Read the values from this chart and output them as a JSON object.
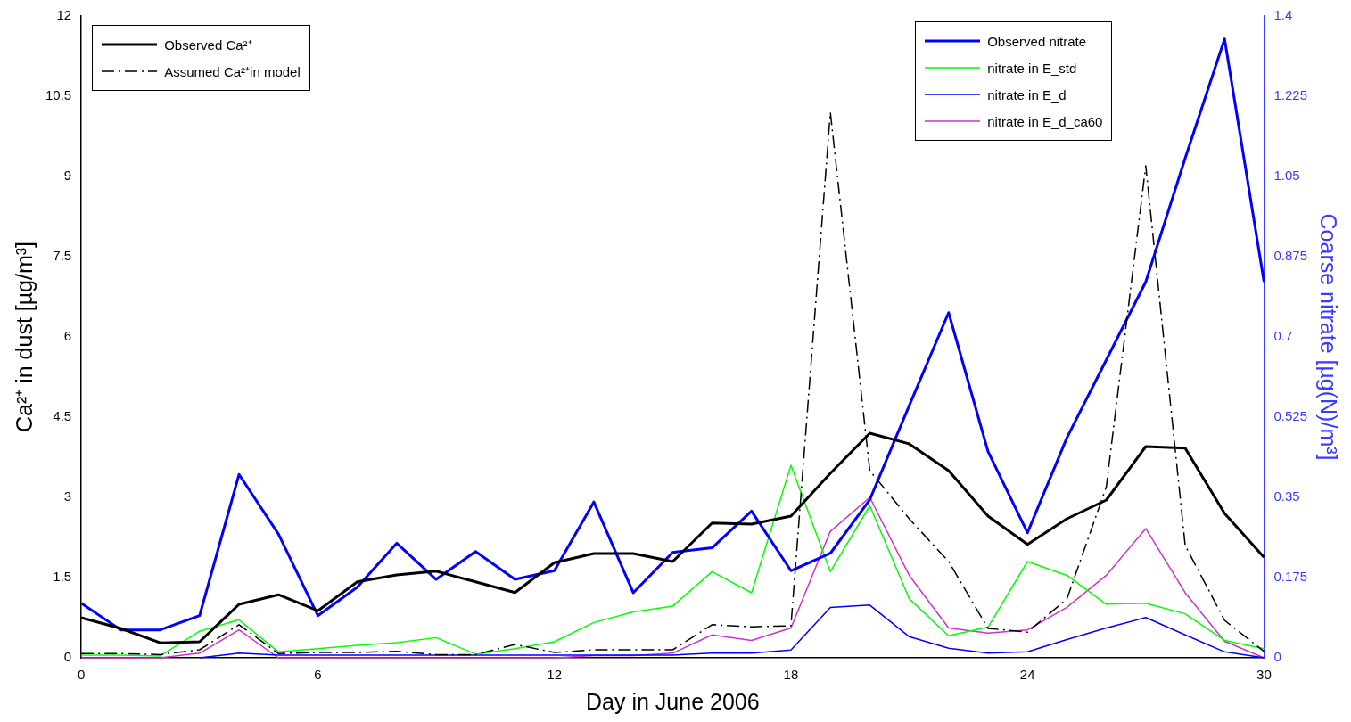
{
  "chart_data": {
    "type": "line",
    "xlabel": "Day in June 2006",
    "ylabel": "Ca²⁺ in dust [µg/m³]",
    "y2label": "Coarse nitrate [µg(N)/m³]",
    "x": [
      0,
      1,
      2,
      3,
      4,
      5,
      6,
      7,
      8,
      9,
      10,
      11,
      12,
      13,
      14,
      15,
      16,
      17,
      18,
      19,
      20,
      21,
      22,
      23,
      24,
      25,
      26,
      27,
      28,
      29,
      30
    ],
    "xlim": [
      0,
      30
    ],
    "xticks": [
      0,
      6,
      12,
      18,
      24,
      30
    ],
    "ylim": [
      0,
      12
    ],
    "yticks": [
      0,
      1.5,
      3,
      4.5,
      6,
      7.5,
      9,
      10.5,
      12
    ],
    "y2lim": [
      0,
      1.4
    ],
    "y2ticks": [
      0,
      0.175,
      0.35,
      0.525,
      0.7,
      0.875,
      1.05,
      1.225,
      1.4
    ],
    "grid": false,
    "legend": "top left",
    "marker": "none",
    "series": [
      {
        "name": "Observed Ca²⁺",
        "color": "#000000",
        "line_style": "solid",
        "values": [
          0.75,
          0.55,
          0.28,
          0.3,
          1.0,
          1.18,
          0.88,
          1.42,
          1.55,
          1.62,
          1.42,
          1.22,
          1.78,
          1.95,
          1.95,
          1.8,
          2.52,
          2.5,
          2.65,
          3.45,
          4.2,
          4.0,
          3.5,
          2.65,
          2.12,
          2.6,
          2.95,
          3.95,
          3.92,
          2.7,
          1.88
        ]
      },
      {
        "name": "Assumed Ca²⁺in model",
        "color": "#000000",
        "line_style": "dashed",
        "values": [
          0.08,
          0.08,
          0.06,
          0.15,
          0.62,
          0.08,
          0.1,
          0.1,
          0.12,
          0.06,
          0.06,
          0.25,
          0.1,
          0.15,
          0.15,
          0.15,
          0.62,
          0.58,
          0.6,
          10.2,
          3.5,
          2.6,
          1.8,
          0.55,
          0.48,
          1.1,
          3.2,
          9.2,
          2.1,
          0.7,
          0.12
        ]
      },
      {
        "name": "Observed nitrate",
        "color": "#0000ff",
        "line_style": "solid",
        "axis": "y2",
        "values": [
          0.119,
          0.061,
          0.061,
          0.092,
          0.4,
          0.27,
          0.092,
          0.154,
          0.25,
          0.171,
          0.232,
          0.171,
          0.19,
          0.34,
          0.142,
          0.23,
          0.24,
          0.32,
          0.19,
          0.228,
          0.345,
          0.55,
          0.753,
          0.45,
          0.273,
          0.48,
          0.65,
          0.82,
          1.09,
          1.35,
          0.82
        ]
      },
      {
        "name": "nitrate in E_std",
        "color": "#00ff00",
        "line_style": "solid",
        "axis": "y2",
        "values": [
          0.006,
          0.006,
          0.004,
          0.058,
          0.083,
          0.013,
          0.02,
          0.027,
          0.033,
          0.044,
          0.008,
          0.02,
          0.035,
          0.077,
          0.1,
          0.113,
          0.188,
          0.142,
          0.42,
          0.188,
          0.332,
          0.129,
          0.048,
          0.067,
          0.21,
          0.18,
          0.117,
          0.119,
          0.096,
          0.038,
          0.02
        ]
      },
      {
        "name": "nitrate in E_d",
        "color": "#0000ff",
        "line_style": "solid",
        "axis": "y2",
        "values": [
          null,
          null,
          null,
          0,
          0.01,
          0.006,
          0.006,
          0.006,
          0.006,
          0.006,
          0.006,
          0.006,
          0.006,
          0.006,
          0.006,
          0.006,
          0.01,
          0.01,
          0.017,
          0.11,
          0.115,
          0.046,
          0.021,
          0.01,
          0.013,
          0.04,
          0.065,
          0.088,
          0.05,
          0.013,
          0
        ]
      },
      {
        "name": "nitrate in E_d_ca60",
        "color": "#cc33cc",
        "line_style": "solid",
        "axis": "y2",
        "values": [
          0,
          0,
          0,
          0.01,
          0.061,
          0,
          0,
          0,
          0,
          0,
          0,
          0,
          0,
          0.005,
          0.005,
          0.01,
          0.05,
          0.038,
          0.065,
          0.276,
          0.35,
          0.18,
          0.065,
          0.054,
          0.061,
          0.11,
          0.18,
          0.282,
          0.142,
          0.036,
          0
        ]
      }
    ]
  }
}
